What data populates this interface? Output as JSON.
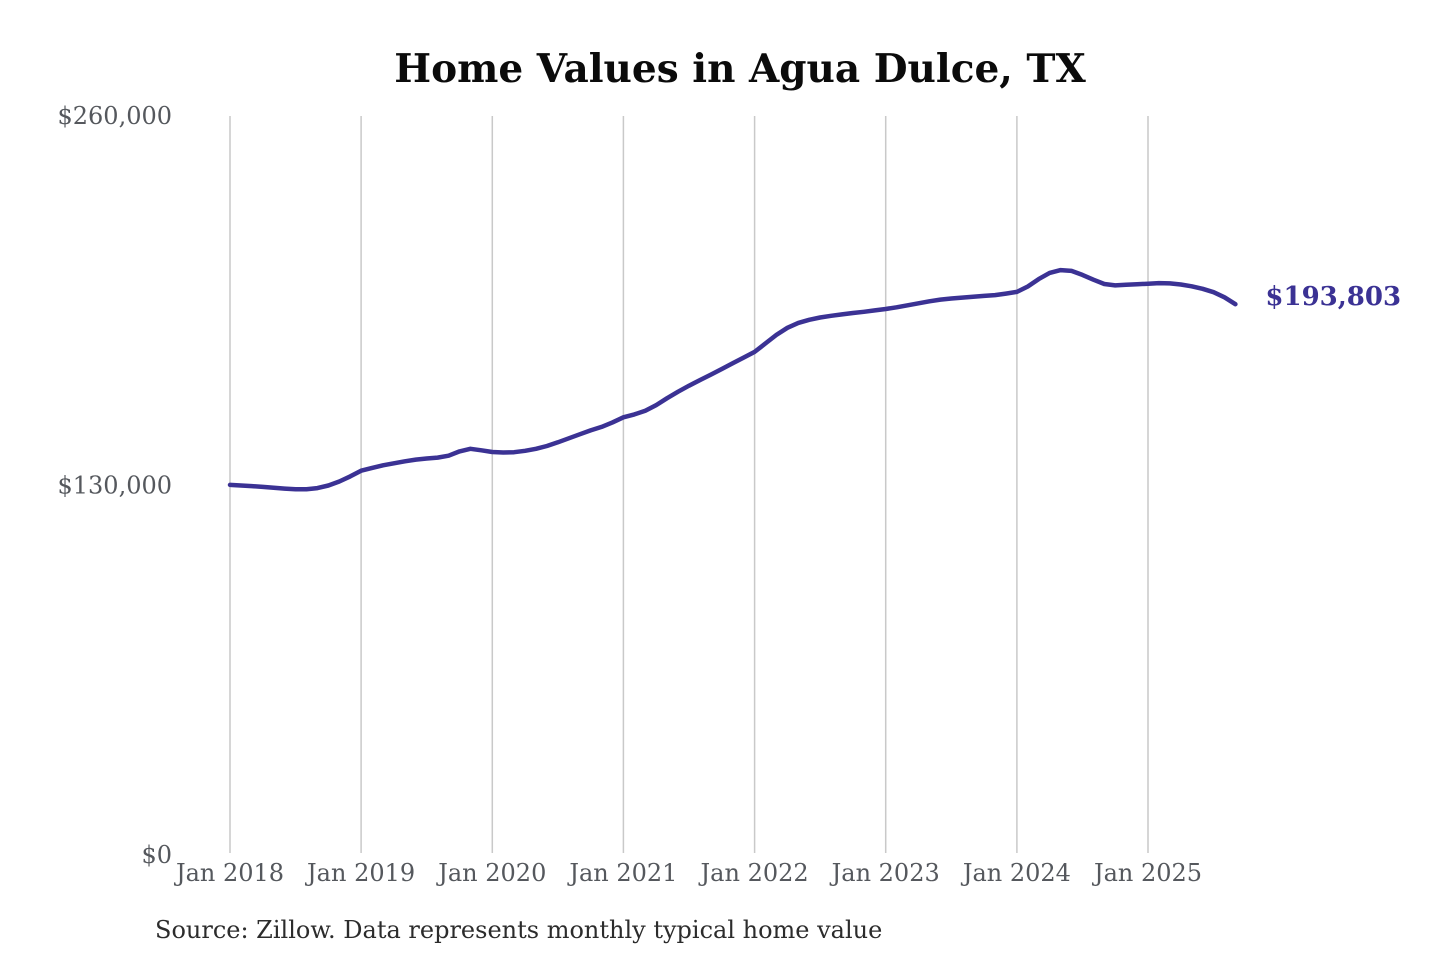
{
  "chart_data": {
    "type": "line",
    "title": "Home Values in Agua Dulce, TX",
    "xlabel": "",
    "ylabel": "",
    "ylim": [
      0,
      260000
    ],
    "grid": "vertical-only",
    "legend_position": "none",
    "x_start": "Jan 2018",
    "x_interval": "monthly",
    "x_ticks": [
      "Jan 2018",
      "Jan 2019",
      "Jan 2020",
      "Jan 2021",
      "Jan 2022",
      "Jan 2023",
      "Jan 2024",
      "Jan 2025"
    ],
    "y_ticks": [
      {
        "label": "$0",
        "value": 0
      },
      {
        "label": "$130,000",
        "value": 130000
      },
      {
        "label": "$260,000",
        "value": 260000
      }
    ],
    "series": [
      {
        "name": "Monthly typical home value",
        "color": "#3b3294",
        "values": [
          130200,
          130000,
          129800,
          129500,
          129200,
          128900,
          128700,
          128700,
          129100,
          130000,
          131400,
          133200,
          135200,
          136200,
          137100,
          137800,
          138500,
          139100,
          139500,
          139800,
          140500,
          142000,
          142900,
          142400,
          141800,
          141600,
          141700,
          142200,
          142900,
          143900,
          145200,
          146600,
          148000,
          149400,
          150600,
          152200,
          154000,
          155000,
          156300,
          158300,
          160700,
          163000,
          165100,
          167100,
          169000,
          171000,
          173000,
          175000,
          177000,
          180000,
          183000,
          185500,
          187200,
          188300,
          189100,
          189700,
          190200,
          190700,
          191100,
          191600,
          192100,
          192700,
          193400,
          194100,
          194800,
          195400,
          195800,
          196100,
          196400,
          196700,
          197000,
          197500,
          198100,
          200000,
          202600,
          204800,
          205800,
          205500,
          204100,
          202400,
          200900,
          200400,
          200600,
          200800,
          201000,
          201200,
          201100,
          200700,
          200100,
          199200,
          198000,
          196200,
          193803
        ]
      }
    ],
    "end_label": "$193,803",
    "end_value": 193803,
    "source": "Source: Zillow. Data represents monthly typical home value",
    "colors": {
      "line": "#3b3294",
      "end_label": "#3b3294",
      "gridline": "#c9c9c9",
      "tick_text": "#55585d",
      "title_text": "#0b0b0b",
      "source_text": "#2c2c2c",
      "background": "#ffffff"
    }
  }
}
